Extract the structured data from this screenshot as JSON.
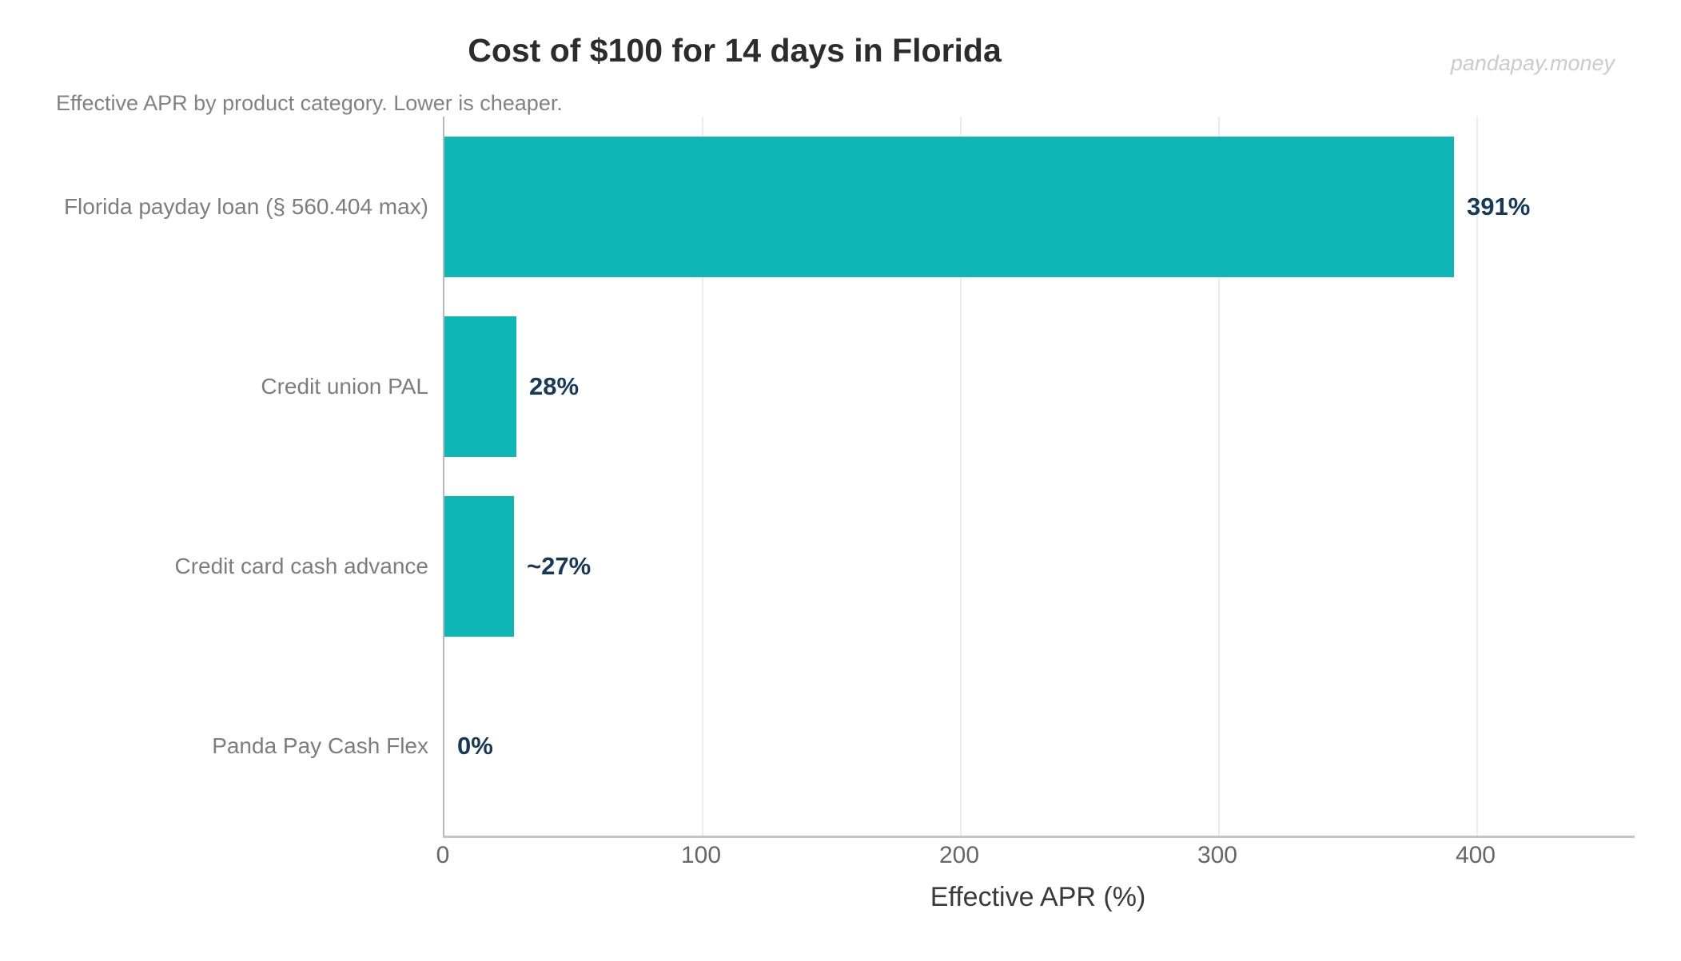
{
  "chart_data": {
    "type": "bar",
    "orientation": "horizontal",
    "title": "Cost of $100 for 14 days in Florida",
    "subtitle": "Effective APR by product category. Lower is cheaper.",
    "watermark": "pandapay.money",
    "xlabel": "Effective APR (%)",
    "categories": [
      "Florida payday loan (§ 560.404 max)",
      "Credit union PAL",
      "Credit card cash advance",
      "Panda Pay Cash Flex"
    ],
    "values": [
      391,
      28,
      27,
      0
    ],
    "value_labels": [
      "391%",
      "28%",
      "~27%",
      "0%"
    ],
    "xticks": [
      0,
      100,
      200,
      300,
      400
    ],
    "xlim": [
      0,
      461
    ],
    "grid": "vertical-light",
    "legend_position": "none",
    "bar_color": "#0fb6b6",
    "value_label_color": "#16395a",
    "category_label_color": "#7d7d7d",
    "background_color": "#ffffff"
  }
}
